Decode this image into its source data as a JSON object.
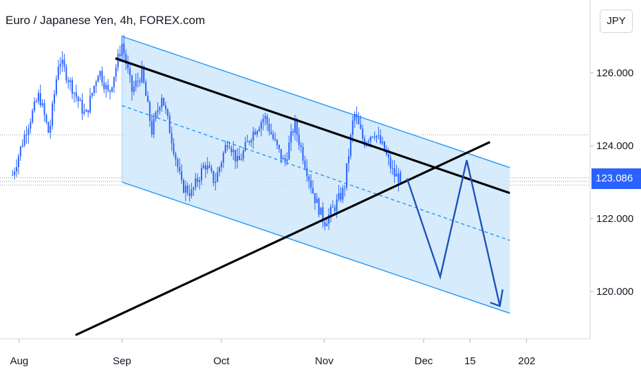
{
  "header": {
    "title": "Euro / Japanese Yen, 4h, FOREX.com"
  },
  "currency_button": {
    "label": "JPY"
  },
  "last_price": {
    "label": "123.086"
  },
  "colors": {
    "candles": "#2962ff",
    "channel_fill": "#cfe8fb",
    "channel_edge": "#2196f3",
    "trendline": "#000000",
    "projection": "#1e53b5",
    "price_tag": "#2962ff"
  },
  "chart_data": {
    "type": "candlestick",
    "title": "Euro / Japanese Yen, 4h, FOREX.com",
    "y_axis": {
      "ticks": [
        "126.000",
        "124.000",
        "122.000",
        "120.000"
      ],
      "range": [
        118.8,
        128.7
      ]
    },
    "x_axis": {
      "ticks": [
        "Aug",
        "Sep",
        "Oct",
        "Nov",
        "Dec",
        "15",
        "202"
      ]
    },
    "price_path": [
      {
        "date": "2019-07-30",
        "price": 123.2
      },
      {
        "date": "2019-08-03",
        "price": 124.4
      },
      {
        "date": "2019-08-07",
        "price": 125.4
      },
      {
        "date": "2019-08-10",
        "price": 124.3
      },
      {
        "date": "2019-08-13",
        "price": 126.4
      },
      {
        "date": "2019-08-17",
        "price": 125.6
      },
      {
        "date": "2019-08-21",
        "price": 124.8
      },
      {
        "date": "2019-08-25",
        "price": 126.1
      },
      {
        "date": "2019-08-28",
        "price": 125.4
      },
      {
        "date": "2019-09-01",
        "price": 126.8
      },
      {
        "date": "2019-09-04",
        "price": 125.5
      },
      {
        "date": "2019-09-07",
        "price": 126.0
      },
      {
        "date": "2019-09-10",
        "price": 124.4
      },
      {
        "date": "2019-09-13",
        "price": 125.4
      },
      {
        "date": "2019-09-16",
        "price": 124.2
      },
      {
        "date": "2019-09-19",
        "price": 122.9
      },
      {
        "date": "2019-09-22",
        "price": 122.7
      },
      {
        "date": "2019-09-26",
        "price": 123.5
      },
      {
        "date": "2019-09-29",
        "price": 123.0
      },
      {
        "date": "2019-10-03",
        "price": 124.2
      },
      {
        "date": "2019-10-06",
        "price": 123.5
      },
      {
        "date": "2019-10-10",
        "price": 124.3
      },
      {
        "date": "2019-10-14",
        "price": 124.8
      },
      {
        "date": "2019-10-17",
        "price": 124.1
      },
      {
        "date": "2019-10-20",
        "price": 123.5
      },
      {
        "date": "2019-10-23",
        "price": 124.6
      },
      {
        "date": "2019-10-26",
        "price": 123.6
      },
      {
        "date": "2019-10-29",
        "price": 122.6
      },
      {
        "date": "2019-11-01",
        "price": 121.9
      },
      {
        "date": "2019-11-04",
        "price": 122.3
      },
      {
        "date": "2019-11-07",
        "price": 122.8
      },
      {
        "date": "2019-11-10",
        "price": 124.9
      },
      {
        "date": "2019-11-13",
        "price": 124.1
      },
      {
        "date": "2019-11-16",
        "price": 124.4
      },
      {
        "date": "2019-11-19",
        "price": 123.9
      },
      {
        "date": "2019-11-22",
        "price": 123.2
      },
      {
        "date": "2019-11-24",
        "price": 123.1
      }
    ],
    "channel": {
      "upper": [
        {
          "date": "2019-09-01",
          "price": 127.0
        },
        {
          "date": "2019-12-27",
          "price": 123.4
        }
      ],
      "median": [
        {
          "date": "2019-09-01",
          "price": 125.1
        },
        {
          "date": "2019-12-27",
          "price": 121.4
        }
      ],
      "lower": [
        {
          "date": "2019-09-01",
          "price": 123.0
        },
        {
          "date": "2019-12-27",
          "price": 119.4
        }
      ]
    },
    "resistance_line": [
      {
        "date": "2019-08-30",
        "price": 126.4
      },
      {
        "date": "2019-12-27",
        "price": 122.7
      }
    ],
    "support_line": [
      {
        "date": "2019-08-18",
        "price": 118.8
      },
      {
        "date": "2019-12-21",
        "price": 124.1
      }
    ],
    "projection": [
      {
        "date": "2019-11-26",
        "price": 123.1
      },
      {
        "date": "2019-12-06",
        "price": 120.4
      },
      {
        "date": "2019-12-14",
        "price": 123.6
      },
      {
        "date": "2019-12-24",
        "price": 119.6
      }
    ],
    "last_price": 123.086
  }
}
